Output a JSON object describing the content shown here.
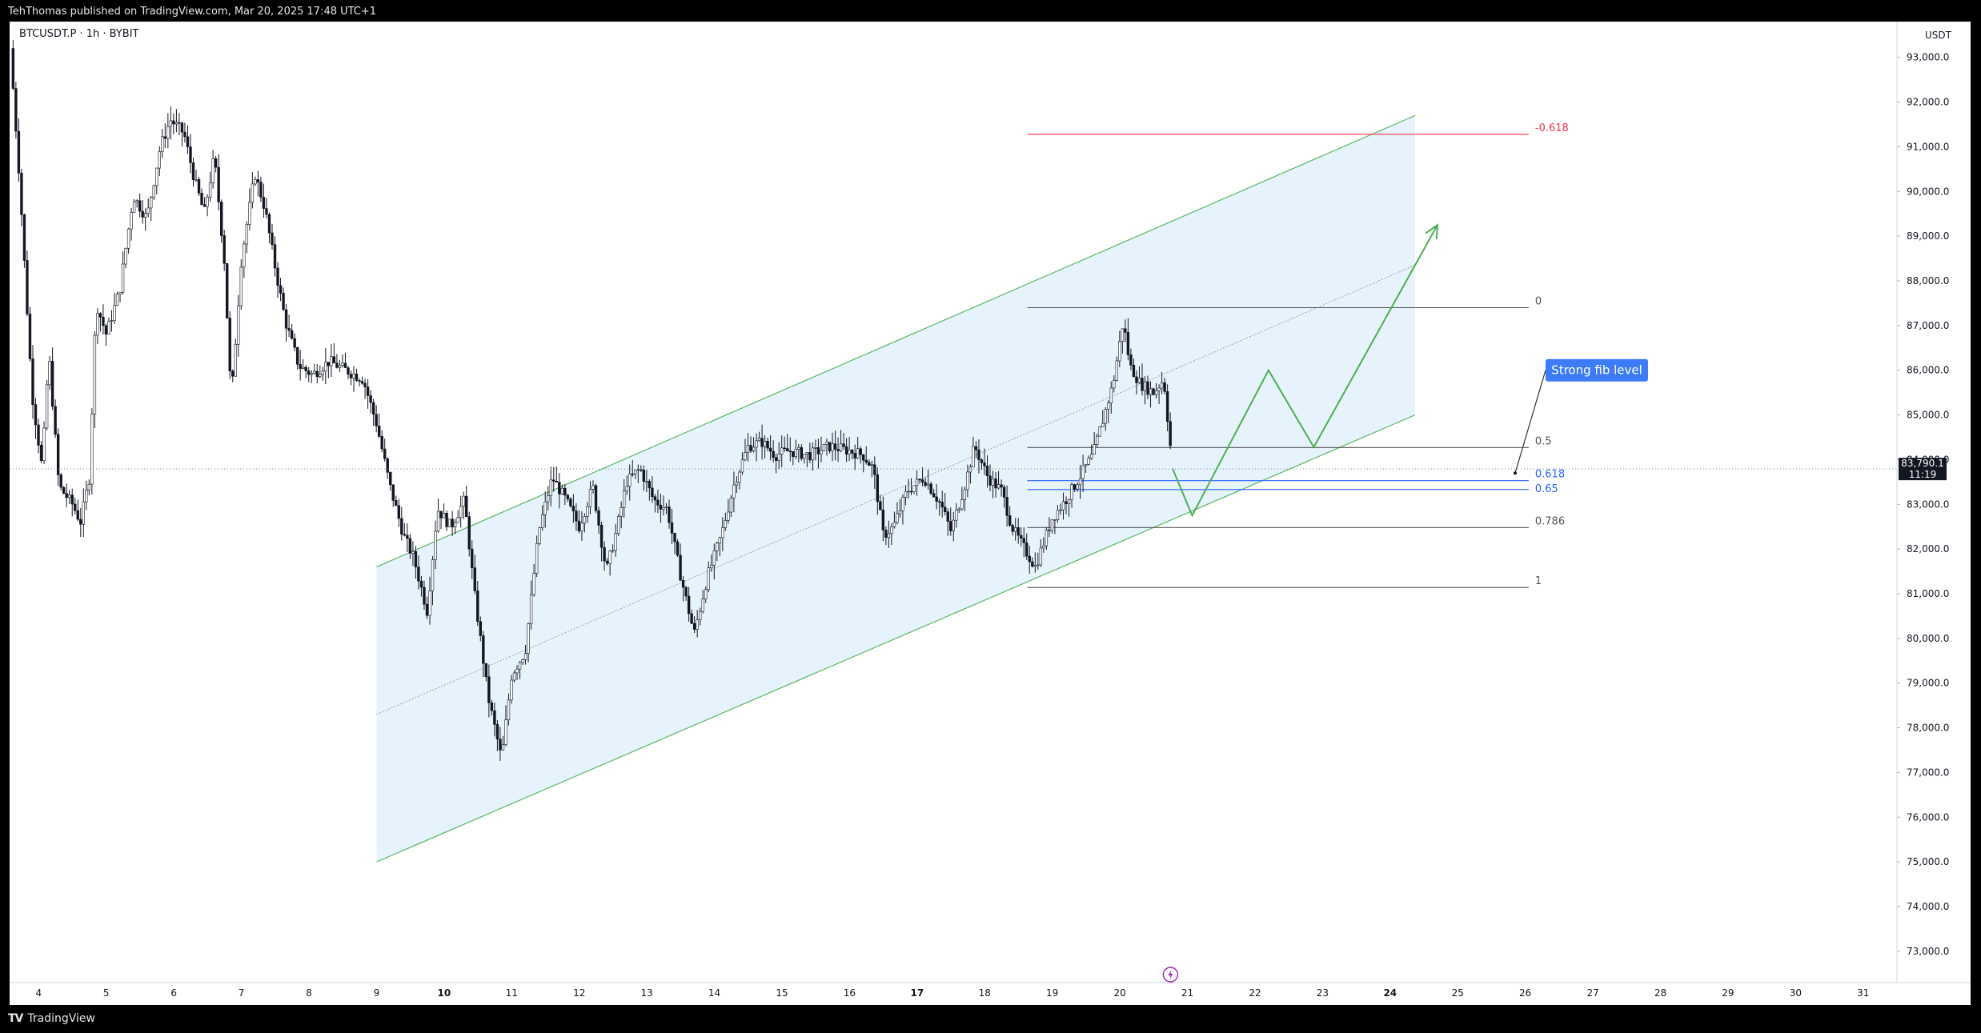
{
  "header": {
    "published_text": "TehThomas published on TradingView.com, Mar 20, 2025 17:48 UTC+1"
  },
  "chart_header": {
    "symbol_text": "BTCUSDT.P · 1h · BYBIT",
    "currency": "USDT"
  },
  "footer": {
    "logo_mark": "TV",
    "logo_text": "TradingView"
  },
  "colors": {
    "channel_fill": "#e3f2fd",
    "channel_line": "#66bb6a",
    "projection": "#4caf50",
    "candle": "#131722",
    "fib_line": "#555555",
    "fib_neg": "#f23645",
    "fib_blue": "#2962ff",
    "callout_bg": "#3d7bf7"
  },
  "chart_data": {
    "type": "candlestick",
    "interval": "1h",
    "y_axis": {
      "ylim": [
        72300,
        93800
      ],
      "tick_labels": [
        "93,000.0",
        "92,000.0",
        "91,000.0",
        "90,000.0",
        "89,000.0",
        "88,000.0",
        "87,000.0",
        "86,000.0",
        "85,000.0",
        "84,000.0",
        "83,000.0",
        "82,000.0",
        "81,000.0",
        "80,000.0",
        "79,000.0",
        "78,000.0",
        "77,000.0",
        "76,000.0",
        "75,000.0",
        "74,000.0",
        "73,000.0"
      ],
      "ticks": [
        93000,
        92000,
        91000,
        90000,
        89000,
        88000,
        87000,
        86000,
        85000,
        84000,
        83000,
        82000,
        81000,
        80000,
        79000,
        78000,
        77000,
        76000,
        75000,
        74000,
        73000
      ]
    },
    "x_axis": {
      "unit": "day (Mar 2025)",
      "xlim": [
        3.57,
        31.5
      ],
      "tick_labels": [
        "4",
        "5",
        "6",
        "7",
        "8",
        "9",
        "10",
        "11",
        "12",
        "13",
        "14",
        "15",
        "16",
        "17",
        "18",
        "19",
        "20",
        "21",
        "22",
        "23",
        "24",
        "25",
        "26",
        "27",
        "28",
        "29",
        "30",
        "31"
      ],
      "ticks": [
        4,
        5,
        6,
        7,
        8,
        9,
        10,
        11,
        12,
        13,
        14,
        15,
        16,
        17,
        18,
        19,
        20,
        21,
        22,
        23,
        24,
        25,
        26,
        27,
        28,
        29,
        30,
        31
      ],
      "bold_ticks": [
        "10",
        "17",
        "24"
      ]
    },
    "price_path": [
      [
        3.58,
        93200
      ],
      [
        3.72,
        90200
      ],
      [
        3.9,
        85500
      ],
      [
        4.05,
        83800
      ],
      [
        4.15,
        86400
      ],
      [
        4.3,
        83400
      ],
      [
        4.5,
        83000
      ],
      [
        4.62,
        82600
      ],
      [
        4.75,
        83600
      ],
      [
        4.85,
        87500
      ],
      [
        5.0,
        86800
      ],
      [
        5.2,
        87800
      ],
      [
        5.4,
        89900
      ],
      [
        5.6,
        89400
      ],
      [
        5.8,
        91000
      ],
      [
        5.95,
        91600
      ],
      [
        6.15,
        91300
      ],
      [
        6.3,
        90300
      ],
      [
        6.45,
        89500
      ],
      [
        6.6,
        90800
      ],
      [
        6.75,
        88400
      ],
      [
        6.85,
        85300
      ],
      [
        7.0,
        88500
      ],
      [
        7.2,
        90400
      ],
      [
        7.35,
        89600
      ],
      [
        7.5,
        88300
      ],
      [
        7.65,
        87100
      ],
      [
        7.85,
        86100
      ],
      [
        8.05,
        85900
      ],
      [
        8.3,
        86200
      ],
      [
        8.55,
        86000
      ],
      [
        8.8,
        85800
      ],
      [
        9.0,
        84800
      ],
      [
        9.2,
        83400
      ],
      [
        9.4,
        82300
      ],
      [
        9.55,
        81800
      ],
      [
        9.75,
        80600
      ],
      [
        9.9,
        82900
      ],
      [
        10.1,
        82500
      ],
      [
        10.3,
        83100
      ],
      [
        10.45,
        81000
      ],
      [
        10.65,
        78700
      ],
      [
        10.85,
        77300
      ],
      [
        11.0,
        79200
      ],
      [
        11.2,
        79700
      ],
      [
        11.4,
        82400
      ],
      [
        11.6,
        83600
      ],
      [
        11.8,
        83100
      ],
      [
        12.0,
        82500
      ],
      [
        12.2,
        83400
      ],
      [
        12.4,
        81500
      ],
      [
        12.55,
        82400
      ],
      [
        12.7,
        83500
      ],
      [
        12.9,
        83800
      ],
      [
        13.1,
        83100
      ],
      [
        13.3,
        82900
      ],
      [
        13.5,
        81400
      ],
      [
        13.7,
        80100
      ],
      [
        13.9,
        81400
      ],
      [
        14.1,
        82300
      ],
      [
        14.3,
        83500
      ],
      [
        14.5,
        84300
      ],
      [
        14.7,
        84400
      ],
      [
        14.9,
        84100
      ],
      [
        15.1,
        84200
      ],
      [
        15.4,
        84100
      ],
      [
        15.7,
        84300
      ],
      [
        16.0,
        84200
      ],
      [
        16.2,
        84100
      ],
      [
        16.35,
        83800
      ],
      [
        16.5,
        82300
      ],
      [
        16.65,
        82500
      ],
      [
        16.85,
        83300
      ],
      [
        17.1,
        83600
      ],
      [
        17.35,
        83000
      ],
      [
        17.5,
        82400
      ],
      [
        17.7,
        83400
      ],
      [
        17.85,
        84300
      ],
      [
        18.05,
        83600
      ],
      [
        18.25,
        83300
      ],
      [
        18.4,
        82500
      ],
      [
        18.55,
        82100
      ],
      [
        18.75,
        81600
      ],
      [
        19.0,
        82700
      ],
      [
        19.2,
        83100
      ],
      [
        19.4,
        83600
      ],
      [
        19.6,
        84100
      ],
      [
        19.75,
        84900
      ],
      [
        19.9,
        85700
      ],
      [
        20.05,
        87100
      ],
      [
        20.15,
        86100
      ],
      [
        20.3,
        85700
      ],
      [
        20.5,
        85500
      ],
      [
        20.65,
        85800
      ],
      [
        20.78,
        83800
      ]
    ],
    "channel": {
      "upper": [
        [
          9.0,
          81600
        ],
        [
          24.37,
          91700
        ]
      ],
      "lower": [
        [
          9.0,
          75000
        ],
        [
          24.37,
          85000
        ]
      ],
      "mid": [
        [
          9.0,
          78300
        ],
        [
          24.37,
          88350
        ]
      ]
    },
    "current_price": {
      "value": 83790.1,
      "label": "83,790.1",
      "countdown": "11:19"
    },
    "fib_retracement": {
      "x_range": [
        18.63,
        26.05
      ],
      "levels": [
        {
          "ratio": "-0.618",
          "price": 91280,
          "color": "#f23645"
        },
        {
          "ratio": "0",
          "price": 87400,
          "color": "#555555"
        },
        {
          "ratio": "0.5",
          "price": 84270,
          "color": "#555555"
        },
        {
          "ratio": "0.618",
          "price": 83530,
          "color": "#2962ff"
        },
        {
          "ratio": "0.65",
          "price": 83330,
          "color": "#2962ff"
        },
        {
          "ratio": "0.786",
          "price": 82480,
          "color": "#555555"
        },
        {
          "ratio": "1",
          "price": 81140,
          "color": "#555555"
        }
      ]
    },
    "projection_path": [
      [
        20.78,
        83800
      ],
      [
        21.07,
        82750
      ],
      [
        22.2,
        86000
      ],
      [
        22.87,
        84280
      ],
      [
        24.7,
        89250
      ]
    ],
    "annotation": {
      "text": "Strong fib level",
      "pointer_to": [
        25.85,
        83700
      ],
      "box_at": [
        26.3,
        86000
      ]
    }
  }
}
